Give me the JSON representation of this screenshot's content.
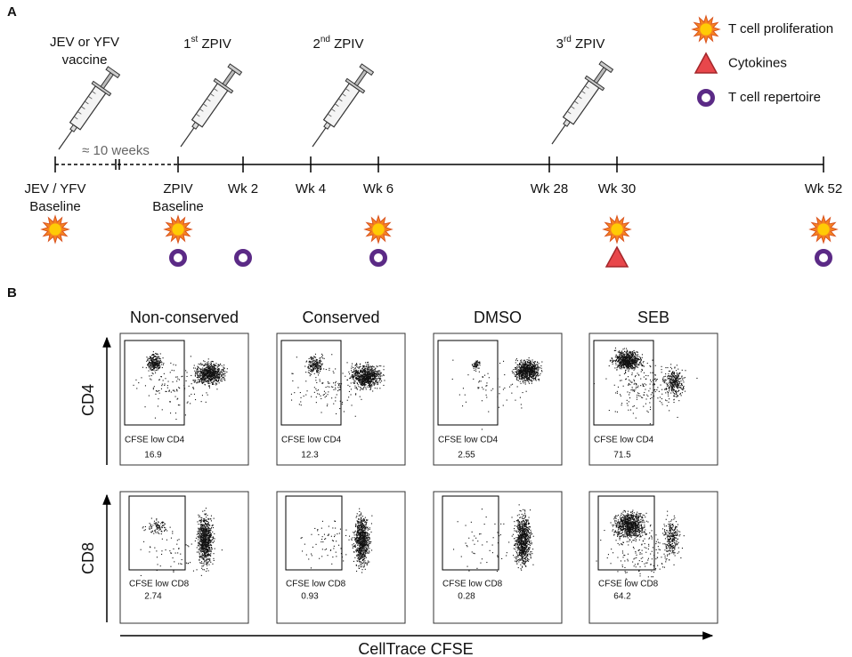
{
  "panel_a": {
    "label": "A",
    "vaccine": [
      "JEV or YFV",
      "vaccine"
    ],
    "doses": [
      {
        "ordinal": "1",
        "suffix": "st",
        "name": " ZPIV"
      },
      {
        "ordinal": "2",
        "suffix": "nd",
        "name": " ZPIV"
      },
      {
        "ordinal": "3",
        "suffix": "rd",
        "name": " ZPIV"
      }
    ],
    "interval": "≈ 10 weeks",
    "timepoints": [
      [
        "JEV / YFV",
        "Baseline"
      ],
      [
        "ZPIV",
        "Baseline"
      ],
      [
        "Wk 2"
      ],
      [
        "Wk 4"
      ],
      [
        "Wk 6"
      ],
      [
        "Wk 28"
      ],
      [
        "Wk 30"
      ],
      [
        "Wk 52"
      ]
    ],
    "legend": [
      "T cell proliferation",
      "Cytokines",
      "T cell repertoire"
    ]
  },
  "panel_b": {
    "label": "B",
    "columns": [
      "Non-conserved",
      "Conserved",
      "DMSO",
      "SEB"
    ],
    "rows": [
      {
        "axis": "CD4",
        "gate": "CFSE low CD4",
        "values": [
          16.9,
          12.3,
          2.55,
          71.5
        ]
      },
      {
        "axis": "CD8",
        "gate": "CFSE low CD8",
        "values": [
          2.74,
          0.93,
          0.28,
          64.2
        ]
      }
    ],
    "x_axis": "CellTrace CFSE"
  }
}
